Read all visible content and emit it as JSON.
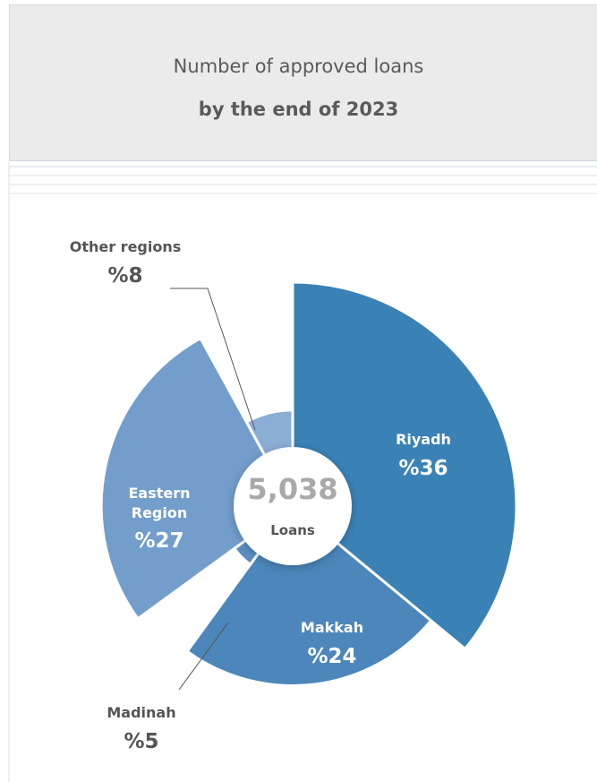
{
  "chart_data": {
    "type": "pie",
    "title": "Number of approved loans",
    "subtitle": "by the end of 2023",
    "categories": [
      "Riyadh",
      "Makkah",
      "Madinah",
      "Eastern Region",
      "Other regions"
    ],
    "values": [
      36,
      24,
      5,
      27,
      8
    ],
    "value_labels": [
      "%36",
      "%24",
      "%5",
      "%27",
      "%8"
    ],
    "colors": [
      "#3a82b6",
      "#4c86bb",
      "#5c8fc2",
      "#739ecb",
      "#8baed4"
    ],
    "center_value": "5,038",
    "center_label": "Loans"
  }
}
